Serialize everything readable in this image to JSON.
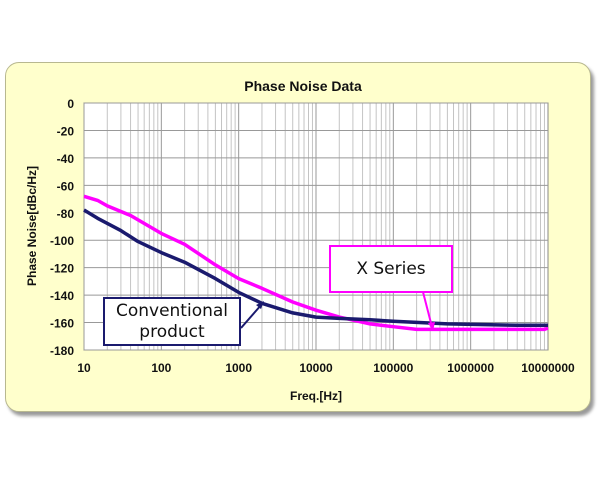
{
  "chart_data": {
    "type": "line",
    "title": "Phase Noise Data",
    "xlabel": "Freq.[Hz]",
    "ylabel": "Phase Noise[dBc/Hz]",
    "xscale": "log",
    "xlim": [
      10,
      10000000
    ],
    "ylim": [
      -180,
      0
    ],
    "xticks": [
      "10",
      "100",
      "1000",
      "10000",
      "100000",
      "1000000",
      "10000000"
    ],
    "yticks": [
      "0",
      "-20",
      "-40",
      "-60",
      "-80",
      "-100",
      "-120",
      "-140",
      "-160",
      "-180"
    ],
    "grid": true,
    "series": [
      {
        "name": "X Series",
        "color": "#ff00ff",
        "x": [
          10,
          15,
          20,
          40,
          100,
          200,
          500,
          1000,
          2000,
          5000,
          10000,
          20000,
          50000,
          100000,
          200000,
          1000000,
          9000000,
          10000000
        ],
        "y": [
          -68,
          -71,
          -75,
          -82,
          -95,
          -103,
          -118,
          -128,
          -135,
          -145,
          -151,
          -156,
          -161,
          -163,
          -165,
          -165,
          -165,
          -164
        ]
      },
      {
        "name": "Conventional product",
        "color": "#1a1a6e",
        "x": [
          10,
          15,
          30,
          50,
          100,
          200,
          500,
          1000,
          2000,
          5000,
          10000,
          20000,
          50000,
          100000,
          500000,
          4000000,
          10000000
        ],
        "y": [
          -78,
          -84,
          -93,
          -101,
          -109,
          -116,
          -128,
          -138,
          -146,
          -153,
          -156,
          -157,
          -158,
          -159,
          -161,
          -162,
          -162
        ]
      }
    ],
    "annotations": [
      "X Series",
      "Conventional product"
    ]
  },
  "labels": {
    "conv_line1": "Conventional",
    "conv_line2": "product",
    "x_series": "X Series"
  }
}
